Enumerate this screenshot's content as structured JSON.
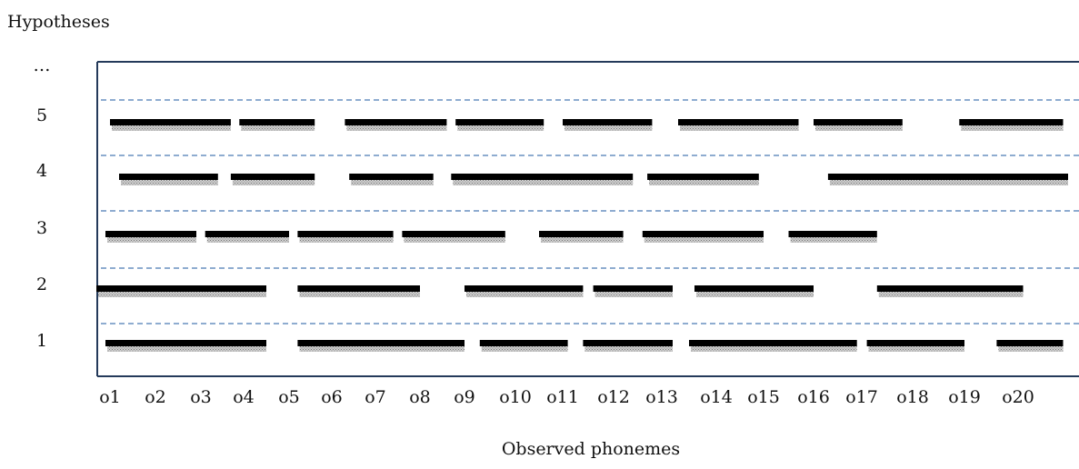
{
  "y_axis_title": "Hypotheses",
  "x_axis_title": "Observed phonemes",
  "y_more_label": "…",
  "hypotheses": [
    {
      "label": "1",
      "segments": [
        [
          0.9,
          4.5
        ],
        [
          5.2,
          9.0
        ],
        [
          9.3,
          11.1
        ],
        [
          11.4,
          13.2
        ],
        [
          13.5,
          16.9
        ],
        [
          17.1,
          19.0
        ],
        [
          19.6,
          20.9
        ]
      ]
    },
    {
      "label": "2",
      "segments": [
        [
          0.7,
          4.5
        ],
        [
          5.2,
          8.0
        ],
        [
          9.0,
          11.4
        ],
        [
          11.6,
          13.2
        ],
        [
          13.6,
          16.0
        ],
        [
          17.3,
          20.1
        ]
      ]
    },
    {
      "label": "3",
      "segments": [
        [
          0.9,
          2.9
        ],
        [
          3.1,
          5.0
        ],
        [
          5.2,
          7.4
        ],
        [
          7.6,
          9.8
        ],
        [
          10.5,
          12.2
        ],
        [
          12.6,
          15.0
        ],
        [
          15.5,
          17.3
        ]
      ]
    },
    {
      "label": "4",
      "segments": [
        [
          1.2,
          3.4
        ],
        [
          3.7,
          5.6
        ],
        [
          6.4,
          8.3
        ],
        [
          8.7,
          12.4
        ],
        [
          12.7,
          14.9
        ],
        [
          16.3,
          21.0
        ]
      ]
    },
    {
      "label": "5",
      "segments": [
        [
          1.0,
          3.7
        ],
        [
          3.9,
          5.6
        ],
        [
          6.3,
          8.6
        ],
        [
          8.8,
          10.6
        ],
        [
          11.0,
          12.8
        ],
        [
          13.3,
          15.7
        ],
        [
          16.0,
          17.8
        ],
        [
          18.9,
          20.9
        ]
      ]
    }
  ],
  "observations": [
    "o1",
    "o2",
    "o3",
    "o4",
    "o5",
    "o6",
    "o7",
    "o8",
    "o9",
    "o10",
    "o11",
    "o12",
    "o13",
    "o14",
    "o15",
    "o16",
    "o17",
    "o18",
    "o19",
    "o20"
  ],
  "colors": {
    "frame": "#243a5a",
    "divider": "#4a7ab5",
    "bar": "#000000",
    "shadow": "#9a9a9a"
  }
}
